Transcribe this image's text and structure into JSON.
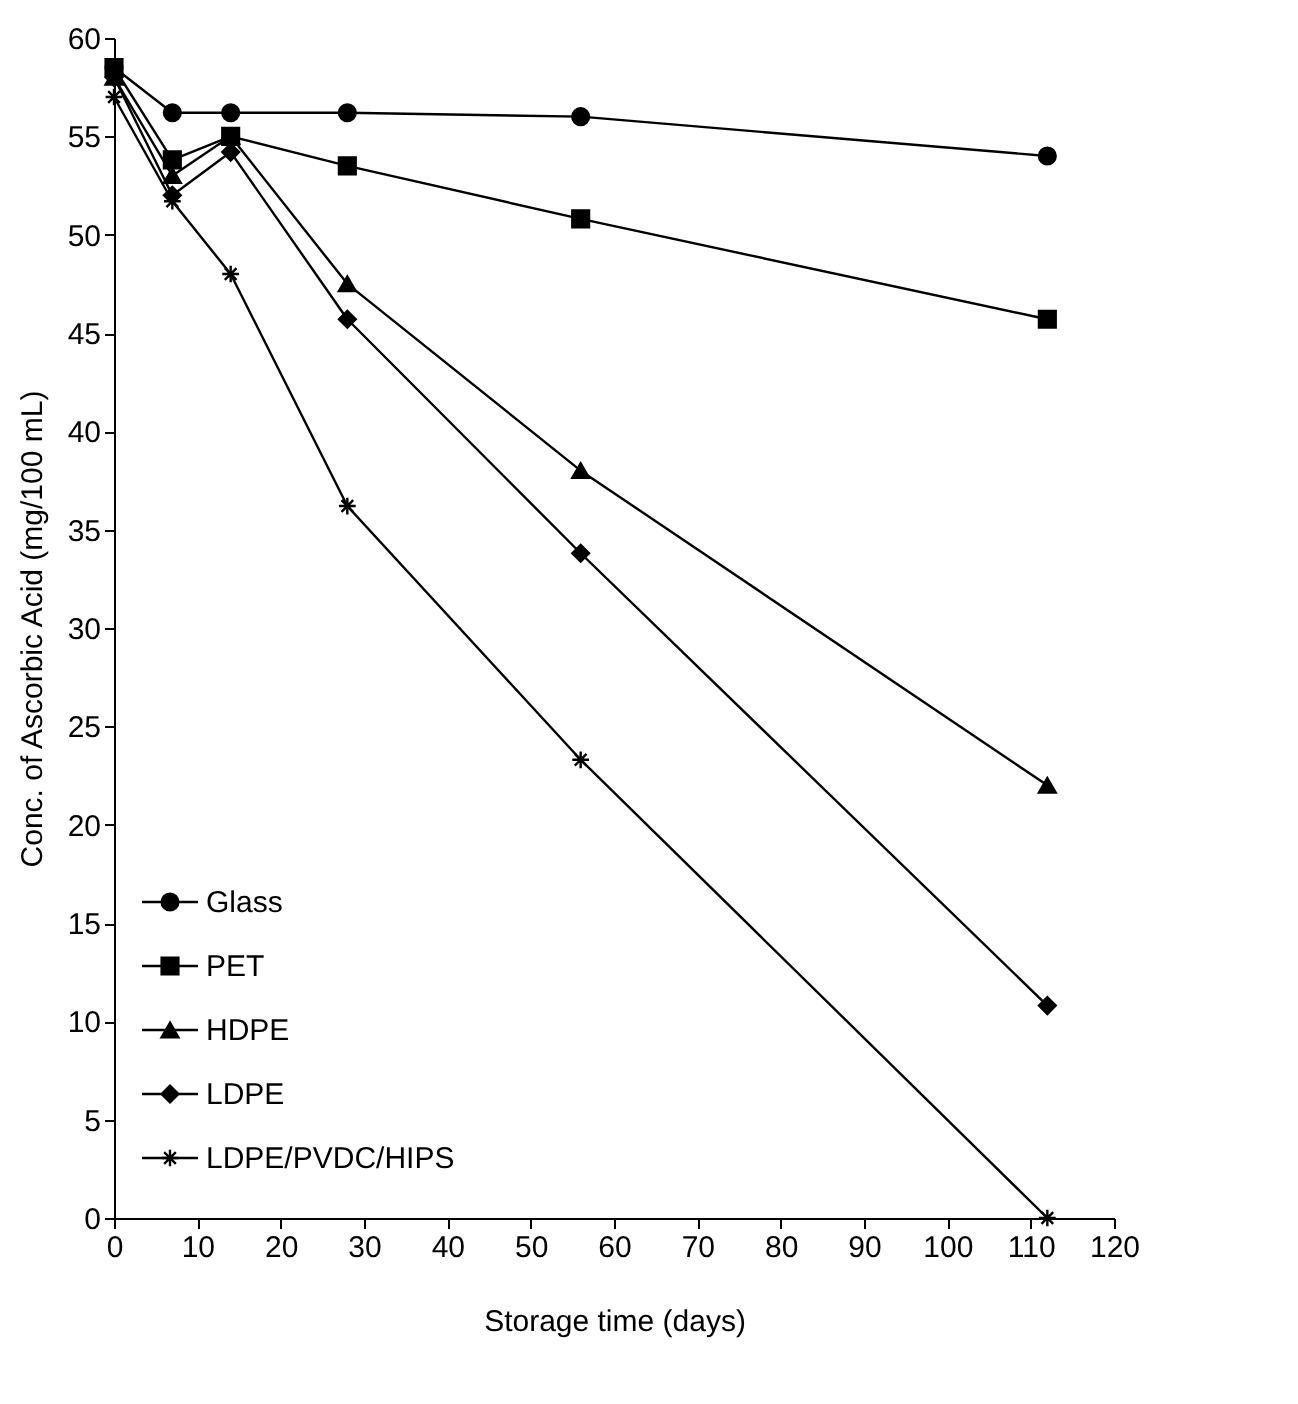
{
  "chart_data": {
    "type": "line",
    "xlabel": "Storage time (days)",
    "ylabel": "Conc. of Ascorbic Acid (mg/100 mL)",
    "x": [
      0,
      7,
      14,
      28,
      56,
      112
    ],
    "series": [
      {
        "name": "Glass",
        "color": "#000000",
        "marker": "circle",
        "values": [
          58.5,
          56.2,
          56.2,
          56.2,
          56.0,
          54.0
        ]
      },
      {
        "name": "PET",
        "color": "#000000",
        "marker": "square",
        "values": [
          58.5,
          53.8,
          55.0,
          53.5,
          50.8,
          45.7
        ]
      },
      {
        "name": "HDPE",
        "color": "#000000",
        "marker": "triangle",
        "values": [
          58.0,
          53.0,
          55.0,
          47.5,
          38.0,
          22.0
        ]
      },
      {
        "name": "LDPE",
        "color": "#000000",
        "marker": "diamond",
        "values": [
          58.0,
          52.0,
          54.2,
          45.7,
          33.8,
          10.8
        ]
      },
      {
        "name": "LDPE/PVDC/HIPS",
        "color": "#000000",
        "marker": "cross",
        "values": [
          57.0,
          51.7,
          48.0,
          36.2,
          23.3,
          0
        ]
      }
    ],
    "xlim": [
      0,
      120
    ],
    "xticks": [
      0,
      10,
      20,
      30,
      40,
      50,
      60,
      70,
      80,
      90,
      100,
      110,
      120
    ],
    "ylim": [
      0,
      60
    ],
    "yticks": [
      0,
      5,
      10,
      15,
      20,
      25,
      30,
      35,
      40,
      45,
      50,
      55,
      60
    ],
    "grid": false,
    "legend": "bottom left",
    "line_style": "solid"
  }
}
